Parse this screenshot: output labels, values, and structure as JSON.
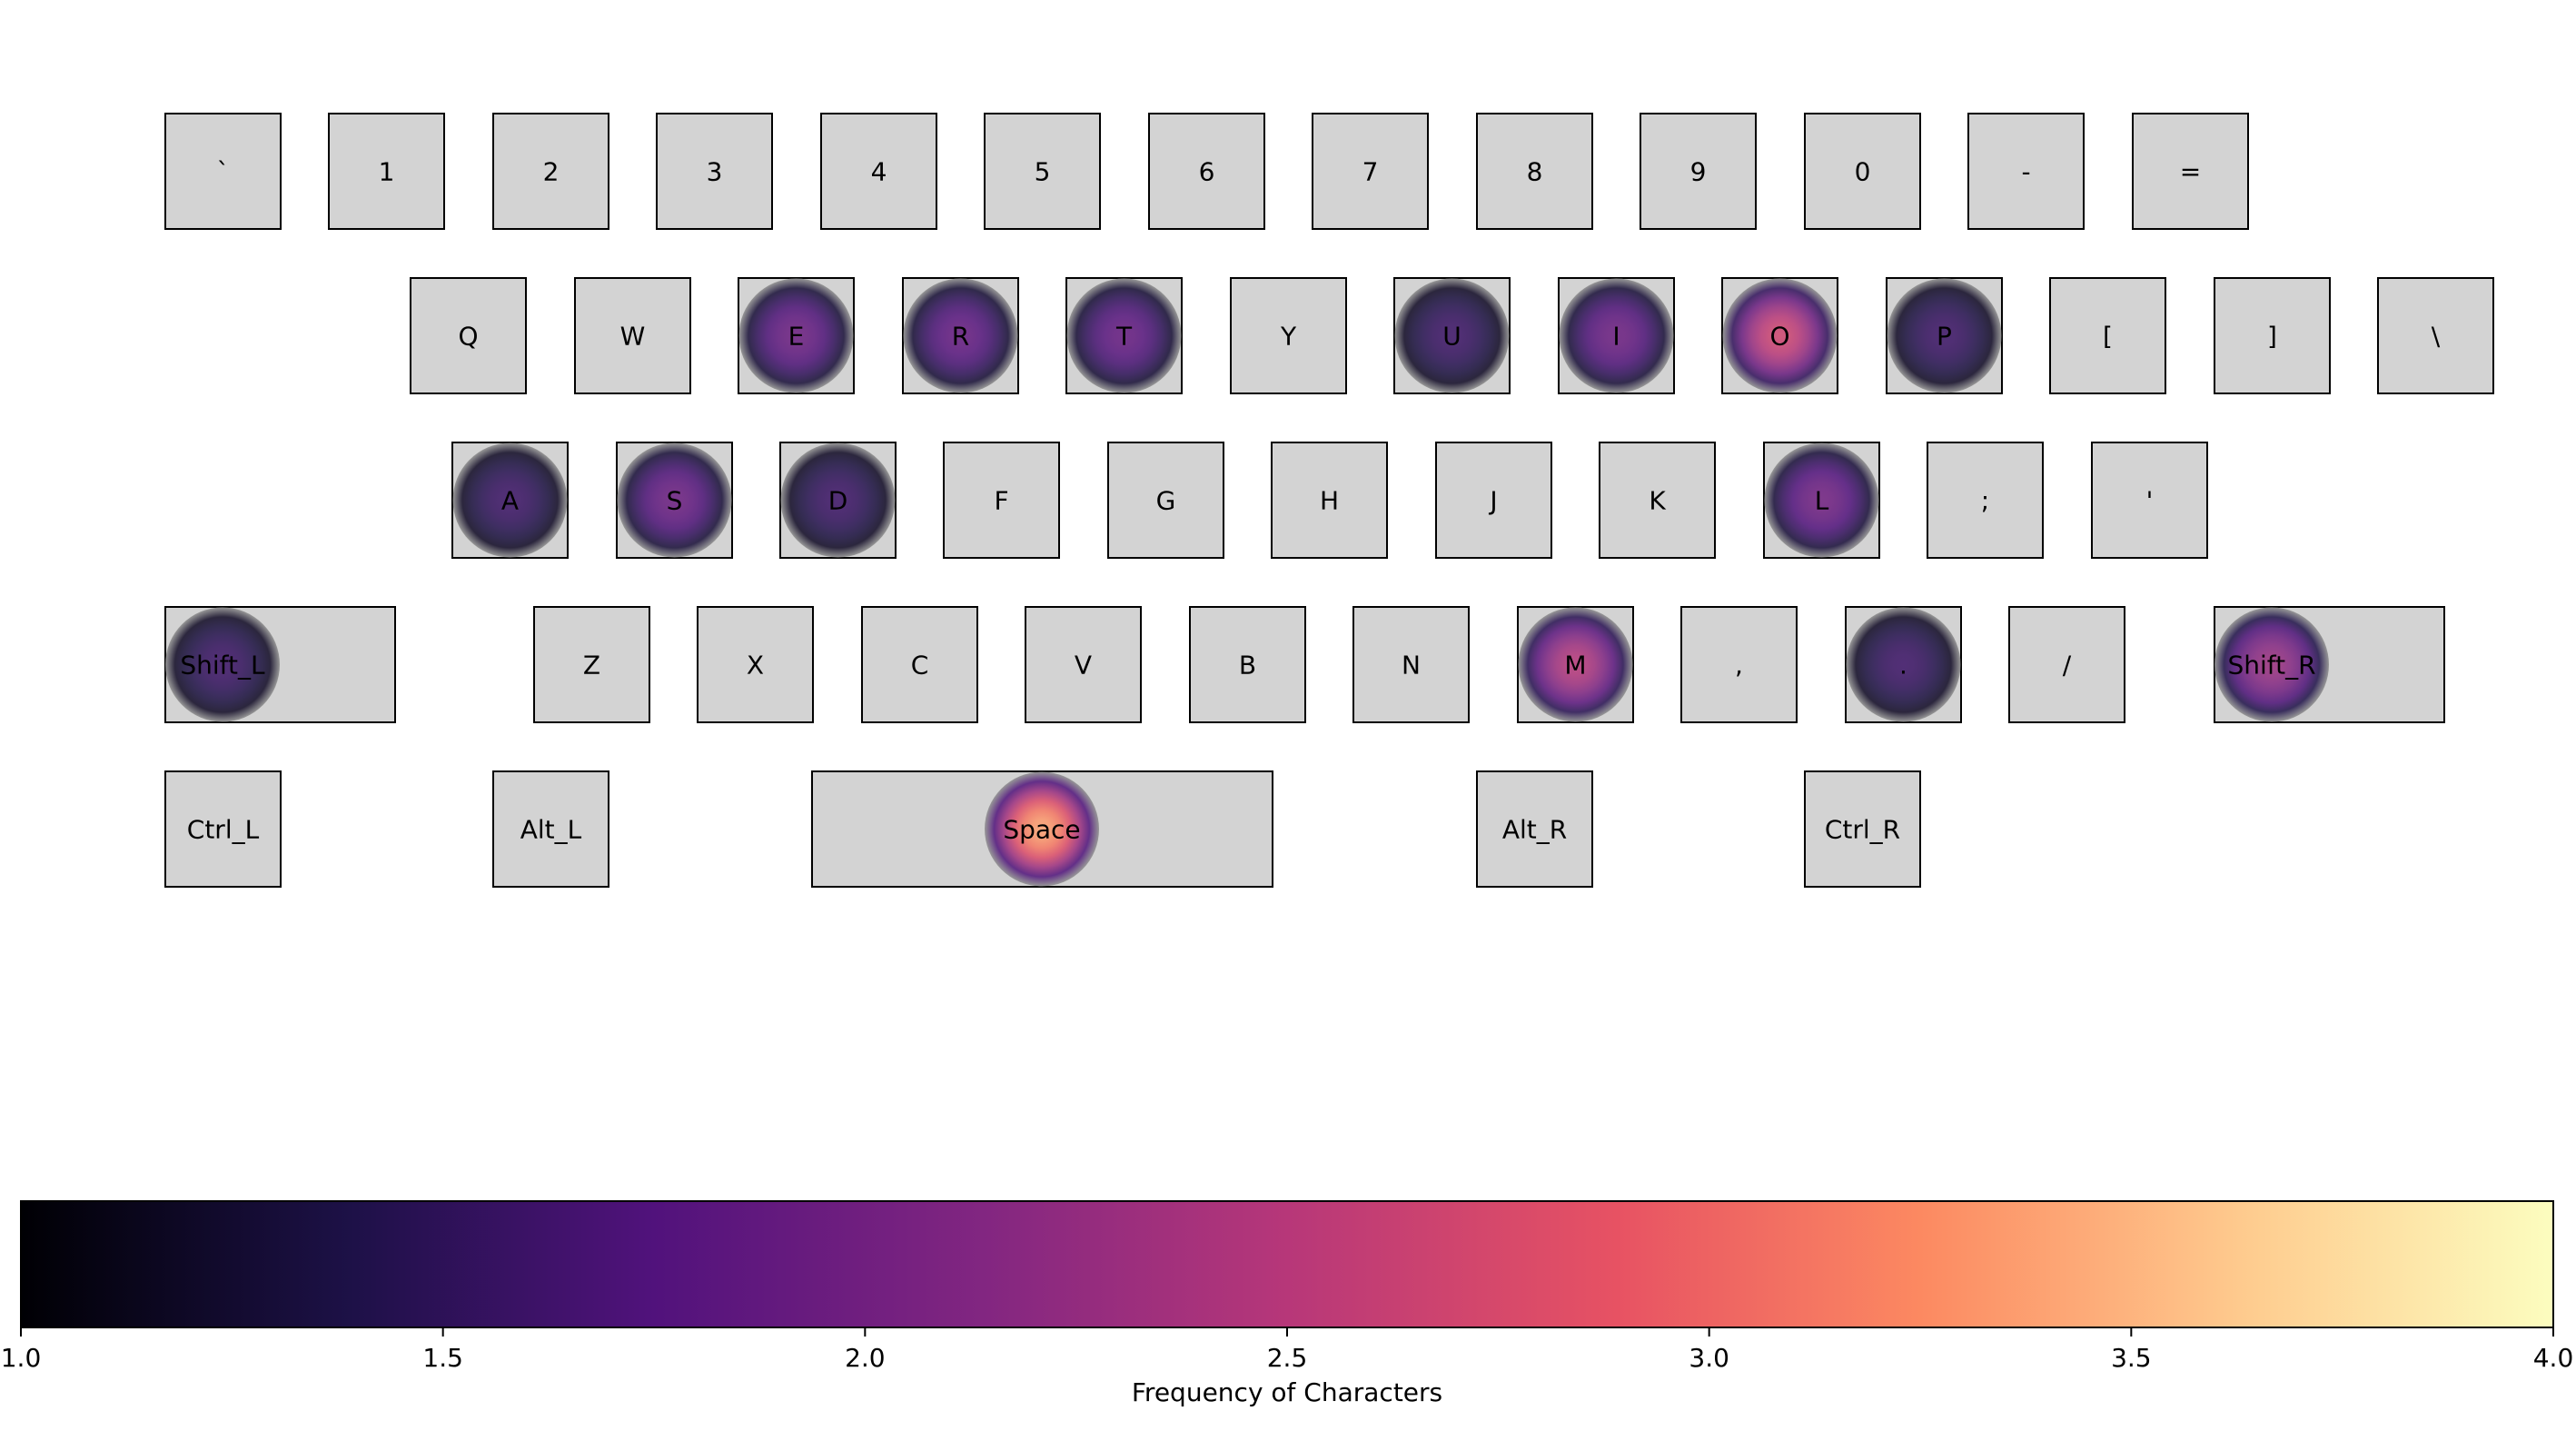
{
  "chart_data": {
    "type": "heatmap",
    "title": "",
    "keys_rows": [
      [
        "`",
        "1",
        "2",
        "3",
        "4",
        "5",
        "6",
        "7",
        "8",
        "9",
        "0",
        "-",
        "="
      ],
      [
        "Q",
        "W",
        "E",
        "R",
        "T",
        "Y",
        "U",
        "I",
        "O",
        "P",
        "[",
        "]",
        "\\"
      ],
      [
        "A",
        "S",
        "D",
        "F",
        "G",
        "H",
        "J",
        "K",
        "L",
        ";",
        "'"
      ],
      [
        "Shift_L",
        "Z",
        "X",
        "C",
        "V",
        "B",
        "N",
        "M",
        ",",
        ".",
        "/",
        "Shift_R"
      ],
      [
        "Ctrl_L",
        "Alt_L",
        "Space",
        "Alt_R",
        "Ctrl_R"
      ]
    ],
    "frequencies": {
      "E": 1.95,
      "R": 1.9,
      "T": 1.9,
      "U": 1.6,
      "I": 1.95,
      "O": 2.7,
      "P": 1.6,
      "A": 1.6,
      "S": 1.95,
      "D": 1.6,
      "L": 2.0,
      "Shift_L": 1.6,
      "M": 2.5,
      ".": 1.6,
      "Shift_R": 2.3,
      "Space": 3.4
    },
    "colorbar": {
      "colormap": "magma",
      "range": [
        1.0,
        4.0
      ],
      "ticks": [
        "1.0",
        "1.5",
        "2.0",
        "2.5",
        "3.0",
        "3.5",
        "4.0"
      ],
      "label": "Frequency of Characters"
    },
    "colors": {
      "key_fill": "#d3d3d3",
      "key_stroke": "#000000",
      "heat_base": "#8c8c8c"
    }
  }
}
